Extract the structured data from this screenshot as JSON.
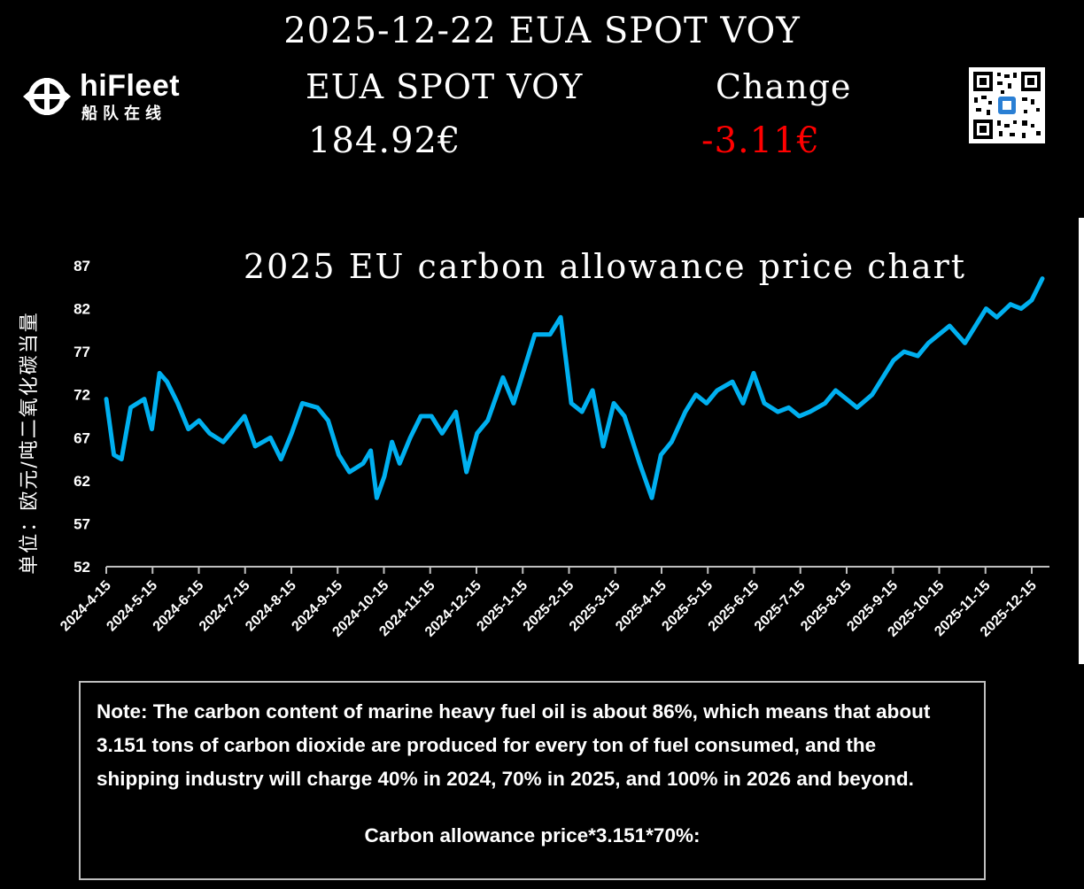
{
  "header": {
    "title": "2025-12-22 EUA SPOT VOY",
    "price_label": "EUA SPOT VOY",
    "change_label": "Change",
    "price_value": "184.92€",
    "change_value": "-3.11€",
    "change_color": "#ff0000"
  },
  "logo": {
    "text_en": "hiFleet",
    "text_cn": "船队在线",
    "icon": "hifleet-logo-icon"
  },
  "qr_code": {
    "icon": "qr-code-icon"
  },
  "note": {
    "text": "Note: The carbon content of marine heavy fuel oil is about 86%, which means that about 3.151 tons of carbon dioxide are produced for every ton of fuel consumed, and the shipping industry will charge 40% in 2024, 70% in 2025, and 100% in 2026 and beyond.",
    "formula": "Carbon allowance price*3.151*70%:"
  },
  "chart_data": {
    "type": "line",
    "title": "2025 EU carbon allowance price chart",
    "ylabel": "单位：欧元/吨二氧化碳当量",
    "xlabel": "",
    "ylim": [
      52,
      87
    ],
    "y_ticks": [
      52,
      57,
      62,
      67,
      72,
      77,
      82,
      87
    ],
    "x_ticks": [
      "2024-4-15",
      "2024-5-15",
      "2024-6-15",
      "2024-7-15",
      "2024-8-15",
      "2024-9-15",
      "2024-10-15",
      "2024-11-15",
      "2024-12-15",
      "2025-1-15",
      "2025-2-15",
      "2025-3-15",
      "2025-4-15",
      "2025-5-15",
      "2025-6-15",
      "2025-7-15",
      "2025-8-15",
      "2025-9-15",
      "2025-10-15",
      "2025-11-15",
      "2025-12-15"
    ],
    "line_color": "#00b0f0",
    "grid": false,
    "series": [
      {
        "x": [
          "2024-4-15",
          "2024-4-20",
          "2024-4-25",
          "2024-5-1",
          "2024-5-10",
          "2024-5-15",
          "2024-5-20",
          "2024-5-25",
          "2024-6-1",
          "2024-6-8",
          "2024-6-15",
          "2024-6-22",
          "2024-7-1",
          "2024-7-8",
          "2024-7-15",
          "2024-7-22",
          "2024-8-1",
          "2024-8-8",
          "2024-8-15",
          "2024-8-22",
          "2024-9-1",
          "2024-9-8",
          "2024-9-15",
          "2024-9-22",
          "2024-10-1",
          "2024-10-6",
          "2024-10-10",
          "2024-10-15",
          "2024-10-20",
          "2024-10-25",
          "2024-11-1",
          "2024-11-8",
          "2024-11-15",
          "2024-11-22",
          "2024-12-1",
          "2024-12-8",
          "2024-12-15",
          "2024-12-22",
          "2025-1-1",
          "2025-1-8",
          "2025-1-15",
          "2025-1-22",
          "2025-2-1",
          "2025-2-8",
          "2025-2-15",
          "2025-2-22",
          "2025-3-1",
          "2025-3-8",
          "2025-3-15",
          "2025-3-22",
          "2025-4-1",
          "2025-4-5",
          "2025-4-9",
          "2025-4-15",
          "2025-4-22",
          "2025-5-1",
          "2025-5-8",
          "2025-5-15",
          "2025-5-22",
          "2025-6-1",
          "2025-6-8",
          "2025-6-15",
          "2025-6-22",
          "2025-7-1",
          "2025-7-8",
          "2025-7-15",
          "2025-7-22",
          "2025-8-1",
          "2025-8-8",
          "2025-8-15",
          "2025-8-22",
          "2025-9-1",
          "2025-9-8",
          "2025-9-15",
          "2025-9-22",
          "2025-10-1",
          "2025-10-8",
          "2025-10-15",
          "2025-10-22",
          "2025-11-1",
          "2025-11-8",
          "2025-11-15",
          "2025-11-22",
          "2025-12-1",
          "2025-12-8",
          "2025-12-15",
          "2025-12-22"
        ],
        "y": [
          71.5,
          65,
          64.5,
          70.5,
          71.5,
          68,
          74.5,
          73.5,
          71,
          68,
          69,
          67.5,
          66.5,
          68,
          69.5,
          66,
          67,
          64.5,
          67.5,
          71,
          70.5,
          69,
          65,
          63,
          64,
          65.5,
          60,
          62.5,
          66.5,
          64,
          67,
          69.5,
          69.5,
          67.5,
          70,
          63,
          67.5,
          69,
          74,
          71,
          75,
          79,
          79,
          81,
          71,
          70,
          72.5,
          66,
          71,
          69.5,
          64,
          62,
          60,
          65,
          66.5,
          70,
          72,
          71,
          72.5,
          73.5,
          71,
          74.5,
          71,
          70,
          70.5,
          69.5,
          70,
          71,
          72.5,
          71.5,
          70.5,
          72,
          74,
          76,
          77,
          76.5,
          78,
          79,
          80,
          78,
          80,
          82,
          81,
          82.5,
          82,
          83,
          85.5
        ]
      }
    ]
  }
}
